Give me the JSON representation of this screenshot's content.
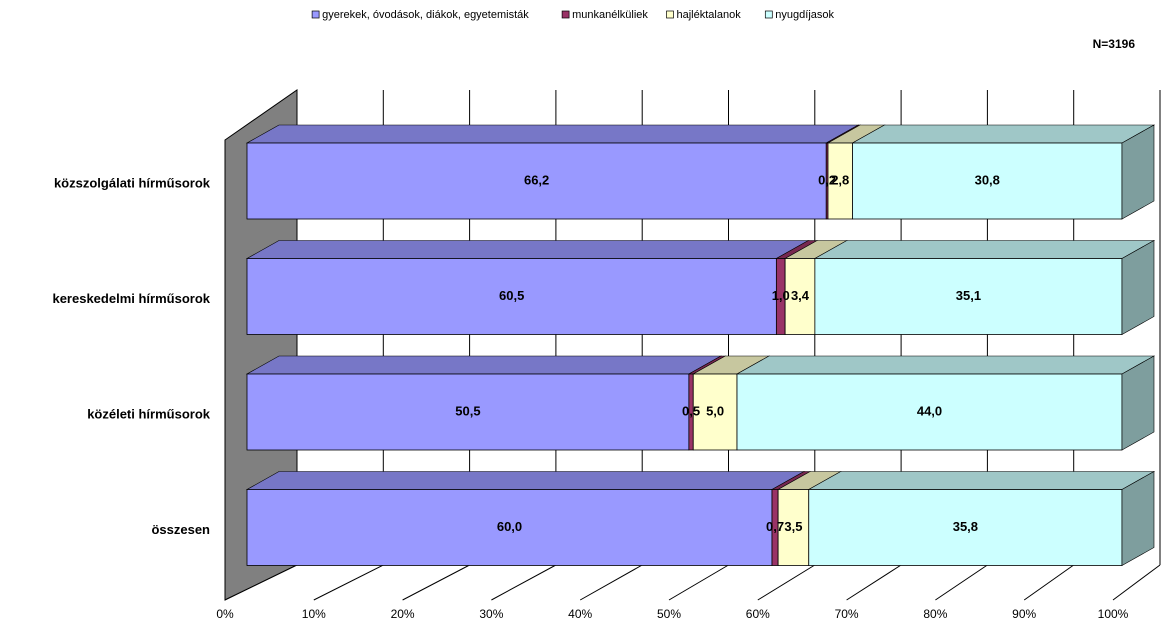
{
  "chart_data": {
    "type": "bar",
    "orientation": "horizontal",
    "stacked": true,
    "annotation": "N=3196",
    "categories": [
      "közszolgálati hírműsorok",
      "kereskedelmi hírműsorok",
      "közéleti hírműsorok",
      "összesen"
    ],
    "series": [
      {
        "name": "gyerekek, óvodások, diákok, egyetemisták",
        "color": "#9999ff",
        "values": [
          66.2,
          60.5,
          50.5,
          60.0
        ],
        "value_labels": [
          "66,2",
          "60,5",
          "50,5",
          "60,0"
        ]
      },
      {
        "name": "munkanélküliek",
        "color": "#993366",
        "values": [
          0.2,
          1.0,
          0.5,
          0.7
        ],
        "value_labels": [
          "0,2",
          "1,0",
          "0,5",
          "0,7"
        ]
      },
      {
        "name": "hajléktalanok",
        "color": "#ffffcc",
        "values": [
          2.8,
          3.4,
          5.0,
          3.5
        ],
        "value_labels": [
          "2,8",
          "3,4",
          "5,0",
          "3,5"
        ]
      },
      {
        "name": "nyugdíjasok",
        "color": "#ccffff",
        "values": [
          30.8,
          35.1,
          44.0,
          35.8
        ],
        "value_labels": [
          "30,8",
          "35,1",
          "44,0",
          "35,8"
        ]
      }
    ],
    "xlim": [
      0,
      100
    ],
    "xticks": [
      {
        "value": 0,
        "label": "0%"
      },
      {
        "value": 10,
        "label": "10%"
      },
      {
        "value": 20,
        "label": "20%"
      },
      {
        "value": 30,
        "label": "30%"
      },
      {
        "value": 40,
        "label": "40%"
      },
      {
        "value": 50,
        "label": "50%"
      },
      {
        "value": 60,
        "label": "60%"
      },
      {
        "value": 70,
        "label": "70%"
      },
      {
        "value": 80,
        "label": "80%"
      },
      {
        "value": 90,
        "label": "90%"
      },
      {
        "value": 100,
        "label": "100%"
      }
    ],
    "grid": true,
    "legend": "top"
  }
}
